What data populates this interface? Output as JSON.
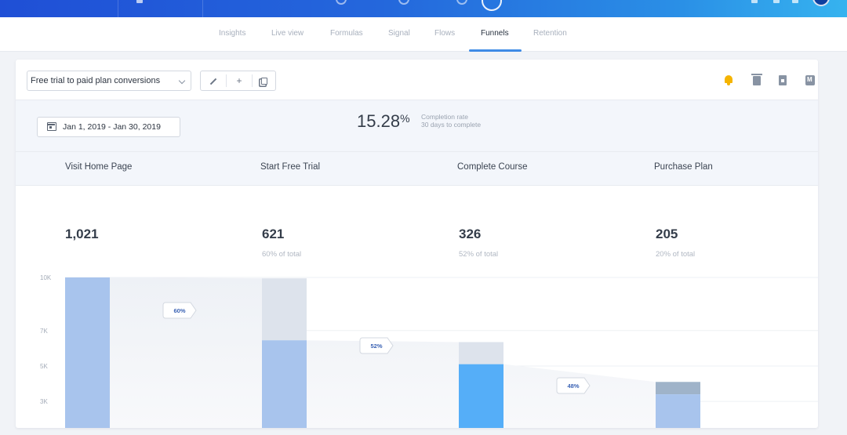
{
  "tabs": [
    {
      "label": "Insights",
      "active": false
    },
    {
      "label": "Live view",
      "active": false
    },
    {
      "label": "Formulas",
      "active": false
    },
    {
      "label": "Signal",
      "active": false
    },
    {
      "label": "Flows",
      "active": false
    },
    {
      "label": "Funnels",
      "active": true
    },
    {
      "label": "Retention",
      "active": false
    }
  ],
  "toolbar": {
    "funnel_select": "Free trial to paid plan conversions",
    "edit_icon": "pencil-icon",
    "add_label": "+",
    "copy_icon": "copy-icon",
    "right_icons": [
      "bell-icon",
      "trash-icon",
      "export-icon",
      "markdown-icon"
    ],
    "bell_color": "#f5b400"
  },
  "summary": {
    "date_range": "Jan 1, 2019 - Jan 30, 2019",
    "completion_rate": "15.28",
    "completion_rate_unit": "%",
    "completion_label": "Completion rate",
    "completion_days": "30 days to complete"
  },
  "steps": [
    {
      "name": "Visit Home Page",
      "count": "1,021",
      "pct_of_total": ""
    },
    {
      "name": "Start Free Trial",
      "count": "621",
      "pct_of_total": "60% of total"
    },
    {
      "name": "Complete Course",
      "count": "326",
      "pct_of_total": "52% of total"
    },
    {
      "name": "Purchase Plan",
      "count": "205",
      "pct_of_total": "20% of total"
    }
  ],
  "colors": {
    "accent": "#3f8be6",
    "bar_converted": "#a8c4ed",
    "bar_converted_highlight": "#55aef8",
    "bar_dropoff": "#dde3ec",
    "bar_last_top": "#9fb3c9"
  },
  "chart_data": {
    "type": "bar",
    "ylim": [
      0,
      10000
    ],
    "yticks": [
      "10K",
      "7K",
      "5K",
      "3K"
    ],
    "ytick_values": [
      10000,
      7000,
      5000,
      3000
    ],
    "categories": [
      "Visit Home Page",
      "Start Free Trial",
      "Complete Course",
      "Purchase Plan"
    ],
    "series": [
      {
        "values": [
          10000,
          6450,
          5100,
          3400
        ]
      },
      {
        "values": [
          0,
          3500,
          1250,
          700
        ]
      }
    ],
    "conversion_labels": [
      "60%",
      "52%",
      "48%"
    ],
    "highlighted_step": 2
  }
}
